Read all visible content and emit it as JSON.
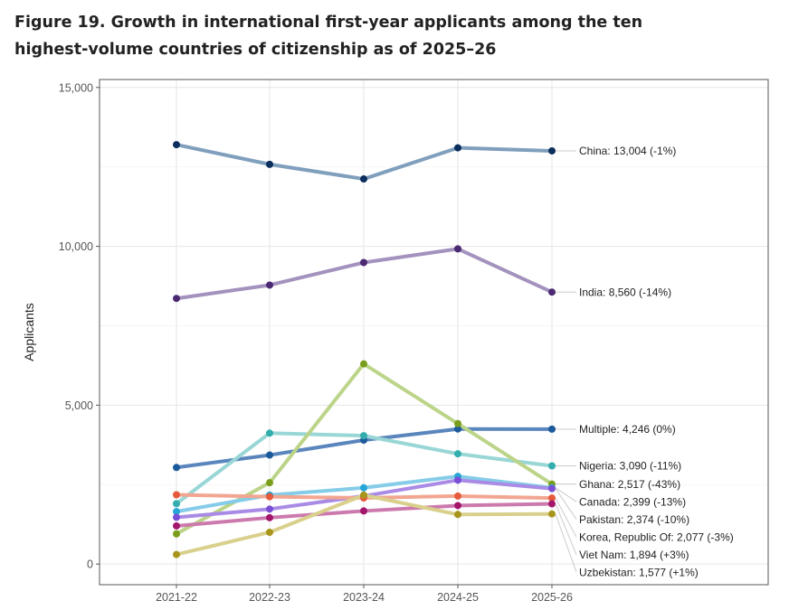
{
  "title": {
    "line1": "Figure 19. Growth in international first-year applicants among the ten",
    "line2": "highest-volume countries of citizenship as of 2025–26"
  },
  "chart_data": {
    "type": "line",
    "title": "Figure 19. Growth in international first-year applicants among the ten highest-volume countries of citizenship as of 2025–26",
    "xlabel": "",
    "ylabel": "Applicants",
    "categories": [
      "2021-22",
      "2022-23",
      "2023-24",
      "2024-25",
      "2025-26"
    ],
    "ylim": [
      -650,
      15250
    ],
    "yticks": [
      0,
      5000,
      10000,
      15000
    ],
    "ytick_labels": [
      "0",
      "5,000",
      "10,000",
      "15,000"
    ],
    "grid": true,
    "series": [
      {
        "name": "China",
        "label": "China: 13,004 (-1%)",
        "line_color": "#7f9fbd",
        "point_color": "#0c2e5c",
        "values": [
          13200,
          12580,
          12120,
          13100,
          13004
        ]
      },
      {
        "name": "India",
        "label": "India: 8,560 (-14%)",
        "line_color": "#a392bd",
        "point_color": "#4b2a73",
        "values": [
          8360,
          8780,
          9490,
          9920,
          8560
        ]
      },
      {
        "name": "Multiple",
        "label": "Multiple: 4,246 (0%)",
        "line_color": "#5a86bd",
        "point_color": "#1c5a9c",
        "values": [
          3040,
          3430,
          3900,
          4250,
          4246
        ]
      },
      {
        "name": "Nigeria",
        "label": "Nigeria: 3,090 (-11%)",
        "line_color": "#99d6d6",
        "point_color": "#33adad",
        "values": [
          1900,
          4120,
          4040,
          3470,
          3090
        ]
      },
      {
        "name": "Ghana",
        "label": "Ghana: 2,517 (-43%)",
        "line_color": "#bcd488",
        "point_color": "#7a9e1c",
        "values": [
          950,
          2560,
          6300,
          4420,
          2517
        ]
      },
      {
        "name": "Canada",
        "label": "Canada: 2,399 (-13%)",
        "line_color": "#85cce8",
        "point_color": "#26a6d6",
        "values": [
          1650,
          2170,
          2400,
          2760,
          2399
        ]
      },
      {
        "name": "Pakistan",
        "label": "Pakistan: 2,374 (-10%)",
        "line_color": "#a98be6",
        "point_color": "#7a4fd6",
        "values": [
          1470,
          1730,
          2140,
          2640,
          2374
        ]
      },
      {
        "name": "Korea, Republic Of",
        "label": "Korea, Republic Of: 2,077 (-3%)",
        "line_color": "#f2a691",
        "point_color": "#e65a3c",
        "values": [
          2180,
          2120,
          2080,
          2140,
          2077
        ]
      },
      {
        "name": "Viet Nam",
        "label": "Viet Nam: 1,894 (+3%)",
        "line_color": "#cc7aad",
        "point_color": "#a3176b",
        "values": [
          1200,
          1460,
          1670,
          1840,
          1894
        ]
      },
      {
        "name": "Uzbekistan",
        "label": "Uzbekistan: 1,577 (+1%)",
        "line_color": "#d9d08c",
        "point_color": "#a8961c",
        "values": [
          300,
          1000,
          2170,
          1560,
          1577
        ]
      }
    ]
  }
}
